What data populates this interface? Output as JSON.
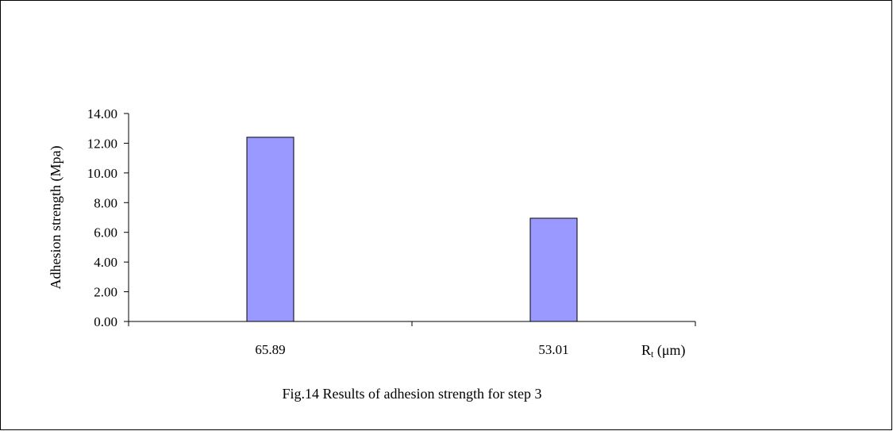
{
  "chart_data": {
    "type": "bar",
    "categories": [
      "65.89",
      "53.01"
    ],
    "values": [
      12.4,
      6.95
    ],
    "series": [
      {
        "values": [
          12.4,
          6.95
        ],
        "color": "#9999FF"
      }
    ],
    "ylabel": "Adhesion strength (Mpa)",
    "xlabel": {
      "main": "R",
      "sub": "t",
      "unit": " (μm)"
    },
    "yticks": [
      "0.00",
      "2.00",
      "4.00",
      "6.00",
      "8.00",
      "10.00",
      "12.00",
      "14.00"
    ],
    "ylim": [
      0,
      14
    ],
    "grid": false,
    "legend": "none",
    "caption": "Fig.14 Results  of adhesion strength  for step 3"
  }
}
